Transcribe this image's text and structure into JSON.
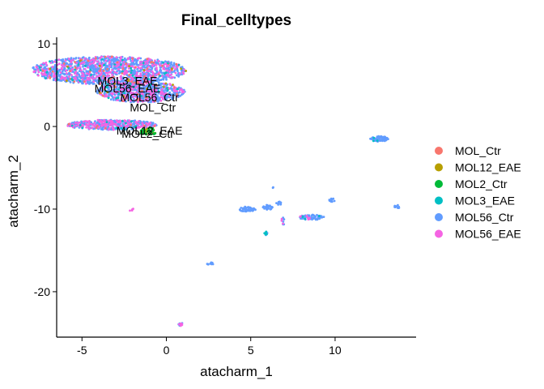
{
  "chart_data": {
    "type": "scatter",
    "title": "Final_celltypes",
    "xlabel": "atacharm_1",
    "ylabel": "atacharm_2",
    "xlim": [
      -6.5,
      14.8
    ],
    "ylim": [
      -25.5,
      10.8
    ],
    "x_ticks": [
      -5,
      0,
      5,
      10
    ],
    "y_ticks": [
      10,
      0,
      -10,
      -20
    ],
    "grid": false,
    "legend_position": "right",
    "series": [
      {
        "name": "MOL_Ctr",
        "color": "#F8766D"
      },
      {
        "name": "MOL12_EAE",
        "color": "#B79F00"
      },
      {
        "name": "MOL2_Ctr",
        "color": "#00BA38"
      },
      {
        "name": "MOL3_EAE",
        "color": "#00BFC4"
      },
      {
        "name": "MOL56_Ctr",
        "color": "#619CFF"
      },
      {
        "name": "MOL56_EAE",
        "color": "#F564E3"
      }
    ],
    "cluster_labels": [
      {
        "text": "MOL3_EAE",
        "x": -2.3,
        "y": 5.4
      },
      {
        "text": "MOL56_EAE",
        "x": -2.3,
        "y": 4.5
      },
      {
        "text": "MOL56_Ctr",
        "x": -1.0,
        "y": 3.4
      },
      {
        "text": "MOL_Ctr",
        "x": -0.8,
        "y": 2.2
      },
      {
        "text": "MOL12_EAE",
        "x": -1.0,
        "y": -0.6
      },
      {
        "text": "MOL2_Ctr",
        "x": -1.1,
        "y": -1.0
      }
    ],
    "clusters": [
      {
        "cx": -3.4,
        "cy": 6.8,
        "sx": 4.6,
        "sy": 1.7,
        "n": 1500,
        "shape": "ellipse",
        "mix": [
          0.03,
          0.01,
          0.0,
          0.03,
          0.7,
          0.23
        ]
      },
      {
        "cx": -1.5,
        "cy": 4.2,
        "sx": 2.6,
        "sy": 1.3,
        "n": 700,
        "shape": "ellipse",
        "mix": [
          0.03,
          0.01,
          0.0,
          0.03,
          0.7,
          0.23
        ]
      },
      {
        "cx": -3.2,
        "cy": 0.2,
        "sx": 2.7,
        "sy": 0.6,
        "n": 420,
        "shape": "ellipse",
        "mix": [
          0.02,
          0.0,
          0.0,
          0.02,
          0.66,
          0.3
        ]
      },
      {
        "cx": -1.1,
        "cy": -0.6,
        "sx": 0.5,
        "sy": 0.5,
        "n": 60,
        "shape": "ellipse",
        "mix": [
          0.0,
          0.5,
          0.5,
          0.0,
          0.0,
          0.0
        ]
      },
      {
        "cx": 12.6,
        "cy": -1.5,
        "sx": 0.55,
        "sy": 0.32,
        "n": 70,
        "shape": "ellipse",
        "mix": [
          0,
          0,
          0,
          0.02,
          0.98,
          0.0
        ]
      },
      {
        "cx": 4.8,
        "cy": -10.0,
        "sx": 0.55,
        "sy": 0.3,
        "n": 50,
        "shape": "ellipse",
        "mix": [
          0,
          0,
          0,
          0,
          1,
          0
        ]
      },
      {
        "cx": 6.0,
        "cy": -9.8,
        "sx": 0.3,
        "sy": 0.3,
        "n": 25,
        "shape": "ellipse",
        "mix": [
          0,
          0,
          0,
          0,
          1,
          0
        ]
      },
      {
        "cx": 6.7,
        "cy": -9.3,
        "sx": 0.2,
        "sy": 0.2,
        "n": 10,
        "shape": "ellipse",
        "mix": [
          0,
          0,
          0,
          0,
          1,
          0
        ]
      },
      {
        "cx": 8.6,
        "cy": -11.0,
        "sx": 0.75,
        "sy": 0.32,
        "n": 90,
        "shape": "ellipse",
        "mix": [
          0,
          0,
          0,
          0.02,
          0.93,
          0.05
        ]
      },
      {
        "cx": 9.8,
        "cy": -8.9,
        "sx": 0.25,
        "sy": 0.2,
        "n": 12,
        "shape": "ellipse",
        "mix": [
          0,
          0,
          0,
          0,
          1,
          0
        ]
      },
      {
        "cx": 13.7,
        "cy": -9.7,
        "sx": 0.2,
        "sy": 0.2,
        "n": 10,
        "shape": "ellipse",
        "mix": [
          0,
          0,
          0,
          0,
          1,
          0
        ]
      },
      {
        "cx": 6.9,
        "cy": -11.5,
        "sx": 0.1,
        "sy": 0.5,
        "n": 10,
        "shape": "ellipse",
        "mix": [
          0,
          0,
          0,
          0,
          0.7,
          0.3
        ]
      },
      {
        "cx": 5.9,
        "cy": -12.9,
        "sx": 0.1,
        "sy": 0.4,
        "n": 10,
        "shape": "ellipse",
        "mix": [
          0,
          0,
          0,
          0.6,
          0.4,
          0
        ]
      },
      {
        "cx": 2.6,
        "cy": -16.6,
        "sx": 0.2,
        "sy": 0.15,
        "n": 10,
        "shape": "ellipse",
        "mix": [
          0,
          0,
          0,
          0,
          1,
          0
        ]
      },
      {
        "cx": 0.9,
        "cy": -24.0,
        "sx": 0.2,
        "sy": 0.2,
        "n": 12,
        "shape": "ellipse",
        "mix": [
          0,
          0,
          0,
          0,
          0.6,
          0.4
        ]
      },
      {
        "cx": -2.0,
        "cy": -10.1,
        "sx": 0.3,
        "sy": 0.15,
        "n": 4,
        "shape": "ellipse",
        "mix": [
          0,
          0,
          0,
          0,
          0,
          1
        ]
      },
      {
        "cx": 6.3,
        "cy": -7.4,
        "sx": 0.05,
        "sy": 0.05,
        "n": 2,
        "shape": "ellipse",
        "mix": [
          0,
          0,
          0,
          0,
          1,
          0
        ]
      }
    ]
  }
}
